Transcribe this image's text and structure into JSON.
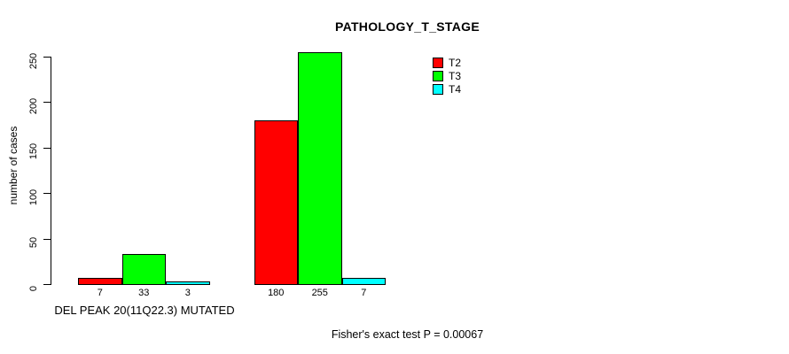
{
  "chart_data": {
    "type": "bar",
    "title": "PATHOLOGY_T_STAGE",
    "ylabel": "number of cases",
    "ylim": [
      0,
      250
    ],
    "yticks": [
      0,
      50,
      100,
      150,
      200,
      250
    ],
    "categories": [
      "DEL PEAK 20(11Q22.3) MUTATED",
      ""
    ],
    "series": [
      {
        "name": "T2",
        "color": "#ff0000",
        "values": [
          7,
          180
        ]
      },
      {
        "name": "T3",
        "color": "#00ff00",
        "values": [
          33,
          255
        ]
      },
      {
        "name": "T4",
        "color": "#00ffff",
        "values": [
          3,
          7
        ]
      }
    ],
    "bar_value_labels": [
      [
        "7",
        "33",
        "3"
      ],
      [
        "180",
        "255",
        "7"
      ]
    ],
    "legend_position": "top-right",
    "grid": false,
    "footnote": "Fisher's exact test P = 0.00067"
  }
}
